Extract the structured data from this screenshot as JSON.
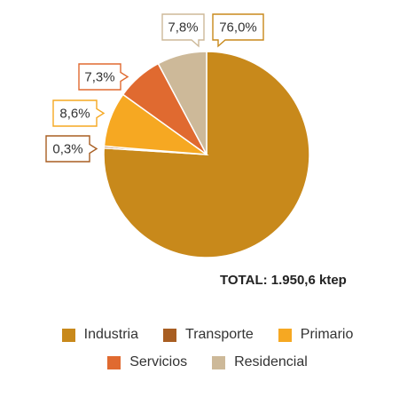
{
  "chart_data": {
    "type": "pie",
    "total_label": "TOTAL: 1.950,6 ktep",
    "slices": [
      {
        "name": "Industria",
        "value": 76.0,
        "label": "76,0%",
        "color": "#C8891B",
        "callout_border": "#C8891B"
      },
      {
        "name": "Transporte",
        "value": 0.3,
        "label": "0,3%",
        "color": "#A85E22",
        "callout_border": "#A85E22"
      },
      {
        "name": "Primario",
        "value": 8.6,
        "label": "8,6%",
        "color": "#F6A822",
        "callout_border": "#F6A822"
      },
      {
        "name": "Servicios",
        "value": 7.3,
        "label": "7,3%",
        "color": "#E06A30",
        "callout_border": "#E06A30"
      },
      {
        "name": "Residencial",
        "value": 7.8,
        "label": "7,8%",
        "color": "#CDB999",
        "callout_border": "#CDB999"
      }
    ],
    "legend": [
      [
        "Industria",
        "Transporte",
        "Primario"
      ],
      [
        "Servicios",
        "Residencial"
      ]
    ]
  }
}
